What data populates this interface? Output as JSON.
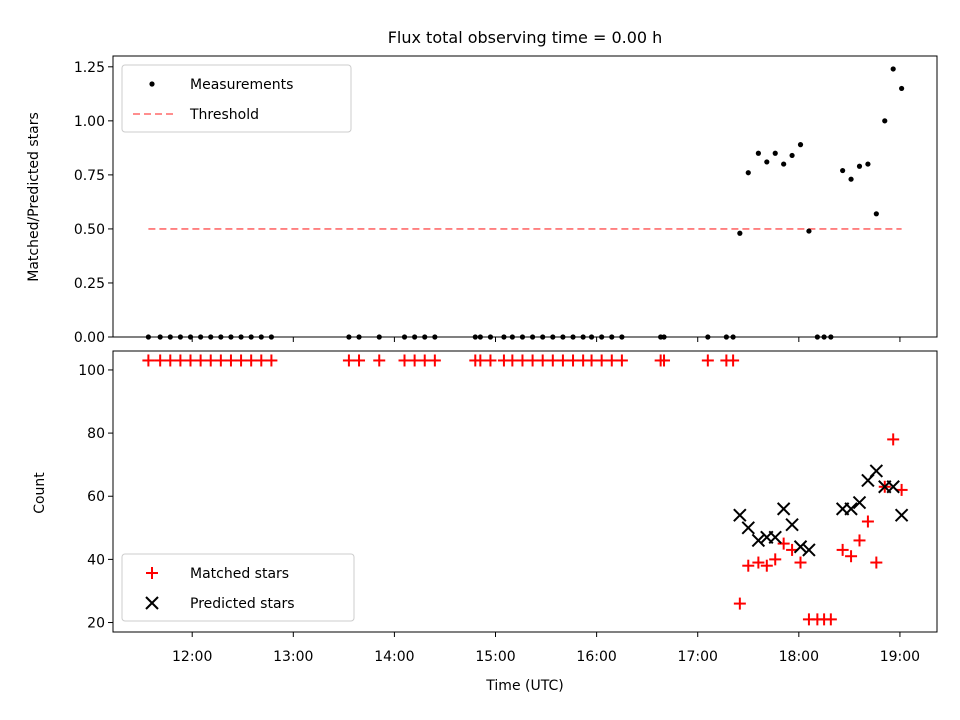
{
  "chart_data": [
    {
      "type": "scatter",
      "title": "Flux total observing time = 0.00 h",
      "xlabel": "",
      "ylabel": "Matched/Predicted stars",
      "xlim": [
        "11:13",
        "19:22"
      ],
      "ylim": [
        0,
        1.3
      ],
      "yticks": [
        "0.00",
        "0.25",
        "0.50",
        "0.75",
        "1.00",
        "1.25"
      ],
      "grid": false,
      "legend_position": "upper left",
      "series": [
        {
          "name": "Measurements",
          "marker": "dot",
          "color": "#000000",
          "points": [
            [
              "11:34",
              0
            ],
            [
              "11:41",
              0
            ],
            [
              "11:47",
              0
            ],
            [
              "11:53",
              0
            ],
            [
              "11:59",
              0
            ],
            [
              "12:05",
              0
            ],
            [
              "12:11",
              0
            ],
            [
              "12:17",
              0
            ],
            [
              "12:23",
              0
            ],
            [
              "12:29",
              0
            ],
            [
              "12:35",
              0
            ],
            [
              "12:41",
              0
            ],
            [
              "12:47",
              0
            ],
            [
              "13:33",
              0
            ],
            [
              "13:39",
              0
            ],
            [
              "13:51",
              0
            ],
            [
              "14:06",
              0
            ],
            [
              "14:12",
              0
            ],
            [
              "14:18",
              0
            ],
            [
              "14:24",
              0
            ],
            [
              "14:48",
              0
            ],
            [
              "14:51",
              0
            ],
            [
              "14:57",
              0
            ],
            [
              "15:05",
              0
            ],
            [
              "15:10",
              0
            ],
            [
              "15:16",
              0
            ],
            [
              "15:22",
              0
            ],
            [
              "15:28",
              0
            ],
            [
              "15:34",
              0
            ],
            [
              "15:40",
              0
            ],
            [
              "15:46",
              0
            ],
            [
              "15:52",
              0
            ],
            [
              "15:57",
              0
            ],
            [
              "16:03",
              0
            ],
            [
              "16:09",
              0
            ],
            [
              "16:15",
              0
            ],
            [
              "16:38",
              0
            ],
            [
              "16:40",
              0
            ],
            [
              "17:06",
              0
            ],
            [
              "17:17",
              0
            ],
            [
              "17:21",
              0
            ],
            [
              "17:25",
              0.48
            ],
            [
              "17:30",
              0.76
            ],
            [
              "17:36",
              0.85
            ],
            [
              "17:41",
              0.81
            ],
            [
              "17:46",
              0.85
            ],
            [
              "17:51",
              0.8
            ],
            [
              "17:56",
              0.84
            ],
            [
              "18:01",
              0.89
            ],
            [
              "18:06",
              0.49
            ],
            [
              "18:11",
              0
            ],
            [
              "18:15",
              0
            ],
            [
              "18:19",
              0
            ],
            [
              "18:26",
              0.77
            ],
            [
              "18:31",
              0.73
            ],
            [
              "18:36",
              0.79
            ],
            [
              "18:41",
              0.8
            ],
            [
              "18:46",
              0.57
            ],
            [
              "18:51",
              1.0
            ],
            [
              "18:56",
              1.24
            ],
            [
              "19:01",
              1.15
            ]
          ]
        },
        {
          "name": "Threshold",
          "style": "dashed",
          "color": "#ff7f7f",
          "points": [
            [
              "11:34",
              0.5
            ],
            [
              "19:01",
              0.5
            ]
          ]
        }
      ]
    },
    {
      "type": "scatter",
      "xlabel": "Time (UTC)",
      "ylabel": "Count",
      "xlim": [
        "11:13",
        "19:22"
      ],
      "ylim": [
        17,
        106
      ],
      "xticks": [
        "12:00",
        "13:00",
        "14:00",
        "15:00",
        "16:00",
        "17:00",
        "18:00",
        "19:00"
      ],
      "yticks": [
        "20",
        "40",
        "60",
        "80",
        "100"
      ],
      "grid": false,
      "legend_position": "lower left",
      "series": [
        {
          "name": "Matched stars",
          "marker": "plus",
          "color": "#ff0000",
          "points": [
            [
              "11:34",
              103
            ],
            [
              "11:41",
              103
            ],
            [
              "11:47",
              103
            ],
            [
              "11:53",
              103
            ],
            [
              "11:59",
              103
            ],
            [
              "12:05",
              103
            ],
            [
              "12:11",
              103
            ],
            [
              "12:17",
              103
            ],
            [
              "12:23",
              103
            ],
            [
              "12:29",
              103
            ],
            [
              "12:35",
              103
            ],
            [
              "12:41",
              103
            ],
            [
              "12:47",
              103
            ],
            [
              "13:33",
              103
            ],
            [
              "13:39",
              103
            ],
            [
              "13:51",
              103
            ],
            [
              "14:06",
              103
            ],
            [
              "14:12",
              103
            ],
            [
              "14:18",
              103
            ],
            [
              "14:24",
              103
            ],
            [
              "14:48",
              103
            ],
            [
              "14:51",
              103
            ],
            [
              "14:57",
              103
            ],
            [
              "15:05",
              103
            ],
            [
              "15:10",
              103
            ],
            [
              "15:16",
              103
            ],
            [
              "15:22",
              103
            ],
            [
              "15:28",
              103
            ],
            [
              "15:34",
              103
            ],
            [
              "15:40",
              103
            ],
            [
              "15:46",
              103
            ],
            [
              "15:52",
              103
            ],
            [
              "15:57",
              103
            ],
            [
              "16:03",
              103
            ],
            [
              "16:09",
              103
            ],
            [
              "16:15",
              103
            ],
            [
              "16:38",
              103
            ],
            [
              "16:40",
              103
            ],
            [
              "17:06",
              103
            ],
            [
              "17:17",
              103
            ],
            [
              "17:21",
              103
            ],
            [
              "17:25",
              26
            ],
            [
              "17:30",
              38
            ],
            [
              "17:36",
              39
            ],
            [
              "17:41",
              38
            ],
            [
              "17:46",
              40
            ],
            [
              "17:51",
              45
            ],
            [
              "17:56",
              43
            ],
            [
              "18:01",
              39
            ],
            [
              "18:06",
              21
            ],
            [
              "18:11",
              21
            ],
            [
              "18:15",
              21
            ],
            [
              "18:19",
              21
            ],
            [
              "18:26",
              43
            ],
            [
              "18:31",
              41
            ],
            [
              "18:36",
              46
            ],
            [
              "18:41",
              52
            ],
            [
              "18:46",
              39
            ],
            [
              "18:51",
              63
            ],
            [
              "18:56",
              78
            ],
            [
              "19:01",
              62
            ]
          ]
        },
        {
          "name": "Predicted stars",
          "marker": "x",
          "color": "#000000",
          "points": [
            [
              "17:25",
              54
            ],
            [
              "17:30",
              50
            ],
            [
              "17:36",
              46
            ],
            [
              "17:41",
              47
            ],
            [
              "17:46",
              47
            ],
            [
              "17:51",
              56
            ],
            [
              "17:56",
              51
            ],
            [
              "18:01",
              44
            ],
            [
              "18:06",
              43
            ],
            [
              "18:26",
              56
            ],
            [
              "18:31",
              56
            ],
            [
              "18:36",
              58
            ],
            [
              "18:41",
              65
            ],
            [
              "18:46",
              68
            ],
            [
              "18:51",
              63
            ],
            [
              "18:56",
              63
            ],
            [
              "19:01",
              54
            ]
          ]
        }
      ]
    }
  ]
}
